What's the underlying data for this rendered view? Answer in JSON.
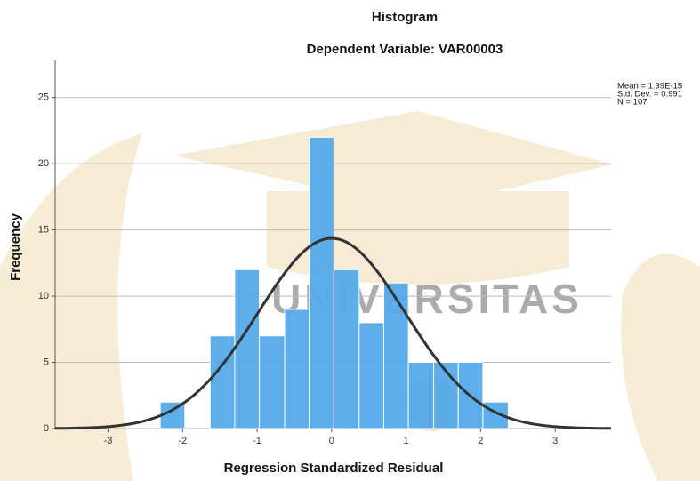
{
  "chart_data": {
    "type": "histogram",
    "title": "Histogram",
    "subtitle": "Dependent Variable: VAR00003",
    "x_label": "Regression Standardized Residual",
    "y_label": "Frequency",
    "watermark": "UNIVERSITAS",
    "bins": [
      -2.3,
      -1.97,
      -1.63,
      -1.3,
      -0.97,
      -0.63,
      -0.3,
      0.03,
      0.37,
      0.7,
      1.03,
      1.37,
      1.7,
      2.03,
      2.37
    ],
    "values": [
      2,
      0,
      7,
      12,
      7,
      9,
      22,
      12,
      8,
      11,
      5,
      5,
      5,
      2
    ],
    "color": "#55aaea",
    "curve_color": "#333333",
    "xlim": [
      -3.71,
      3.75
    ],
    "ylim": [
      0,
      27.8
    ],
    "xticks": [
      -3,
      -2,
      -1,
      0,
      1,
      2,
      3
    ],
    "yticks": [
      0,
      5,
      10,
      15,
      20,
      25
    ],
    "grid": true,
    "stats": [
      {
        "value": 1.39e-15,
        "label": "Mean = 1.39E-15"
      },
      {
        "value": 0.991,
        "label": "Std. Dev. = 0.991"
      },
      {
        "value": 107,
        "label": "N = 107"
      }
    ]
  }
}
